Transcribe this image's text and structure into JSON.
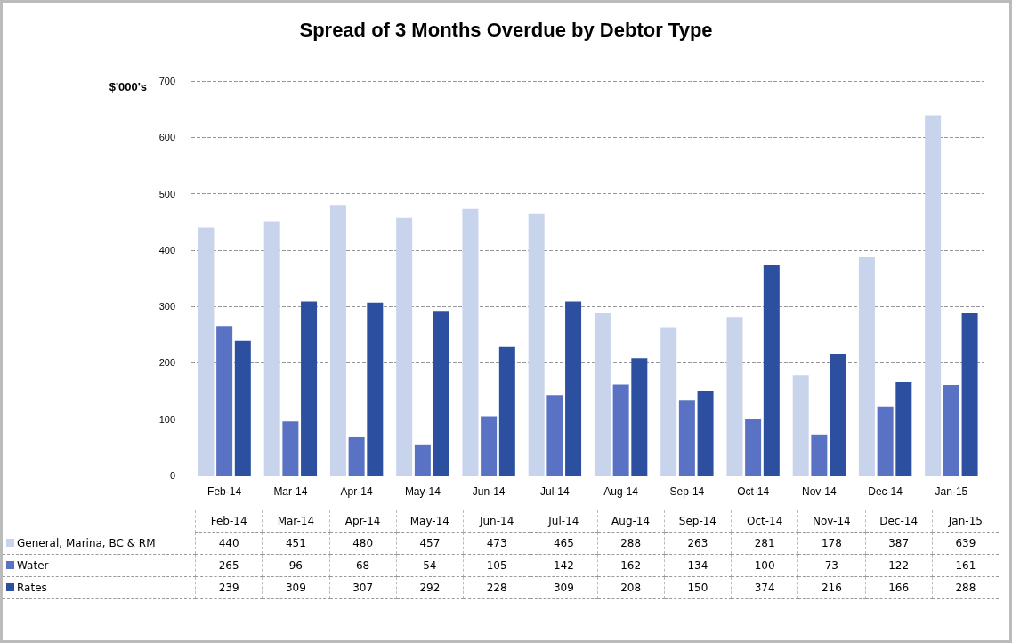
{
  "chart_data": {
    "type": "bar",
    "title": "Spread of 3 Months Overdue by Debtor Type",
    "ylabel": "$'000's",
    "categories": [
      "Feb-14",
      "Mar-14",
      "Apr-14",
      "May-14",
      "Jun-14",
      "Jul-14",
      "Aug-14",
      "Sep-14",
      "Oct-14",
      "Nov-14",
      "Dec-14",
      "Jan-15"
    ],
    "series": [
      {
        "name": "General, Marina, BC & RM",
        "color": "#c8d3ec",
        "values": [
          440,
          451,
          480,
          457,
          473,
          465,
          288,
          263,
          281,
          178,
          387,
          639
        ]
      },
      {
        "name": "Water",
        "color": "#5a72c3",
        "values": [
          265,
          96,
          68,
          54,
          105,
          142,
          162,
          134,
          100,
          73,
          122,
          161
        ]
      },
      {
        "name": "Rates",
        "color": "#2c4f9f",
        "values": [
          239,
          309,
          307,
          292,
          228,
          309,
          208,
          150,
          374,
          216,
          166,
          288
        ]
      }
    ],
    "ylim": [
      0,
      700
    ],
    "yticks": [
      0,
      100,
      200,
      300,
      400,
      500,
      600,
      700
    ],
    "grid": "y",
    "legend": "bottom",
    "data_labels": true
  }
}
